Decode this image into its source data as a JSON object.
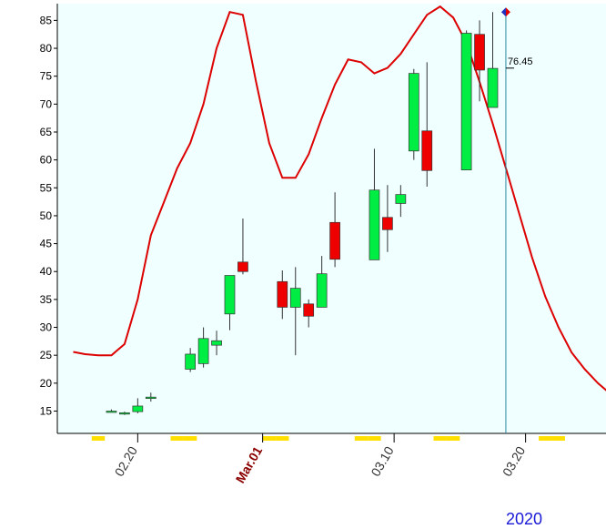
{
  "chart_data": {
    "type": "candlestick",
    "title": "",
    "xlabel": "",
    "ylabel": "",
    "ylim": [
      11,
      88
    ],
    "y_ticks": [
      15,
      20,
      25,
      30,
      35,
      40,
      45,
      50,
      55,
      60,
      65,
      70,
      75,
      80,
      85
    ],
    "x_tick_labels": [
      {
        "label": "02.20",
        "index": 3,
        "style": "normal"
      },
      {
        "label": "Mar.01",
        "index": 12.5,
        "style": "month"
      },
      {
        "label": "03.10",
        "index": 22.5,
        "style": "normal"
      },
      {
        "label": "03.20",
        "index": 32.5,
        "style": "normal"
      }
    ],
    "year_label": "2020",
    "current_value_label": "76.45",
    "current_index": 31,
    "current_marker_value": 86.5,
    "background_color": "#f0ffff",
    "up_color": "#00ee44",
    "down_color": "#ee0000",
    "line_color": "#dd0000",
    "candles": [
      {
        "i": 1,
        "open": 15.0,
        "high": 15.3,
        "low": 14.8,
        "close": 15.0
      },
      {
        "i": 2,
        "open": 14.6,
        "high": 14.9,
        "low": 14.3,
        "close": 14.7
      },
      {
        "i": 3,
        "open": 14.9,
        "high": 17.3,
        "low": 14.6,
        "close": 15.9
      },
      {
        "i": 4,
        "open": 17.3,
        "high": 18.3,
        "low": 16.7,
        "close": 17.5
      },
      {
        "i": 7,
        "open": 22.5,
        "high": 26.3,
        "low": 22.0,
        "close": 25.2
      },
      {
        "i": 8,
        "open": 23.5,
        "high": 30.0,
        "low": 22.8,
        "close": 28.0
      },
      {
        "i": 9,
        "open": 26.8,
        "high": 29.4,
        "low": 25.0,
        "close": 27.6
      },
      {
        "i": 10,
        "open": 32.4,
        "high": 39.3,
        "low": 29.5,
        "close": 39.3
      },
      {
        "i": 11,
        "open": 41.7,
        "high": 49.5,
        "low": 39.5,
        "close": 40.0
      },
      {
        "i": 14,
        "open": 38.2,
        "high": 40.2,
        "low": 31.5,
        "close": 33.6
      },
      {
        "i": 15,
        "open": 33.6,
        "high": 40.8,
        "low": 25.0,
        "close": 37.0
      },
      {
        "i": 16,
        "open": 34.2,
        "high": 35.0,
        "low": 30.0,
        "close": 32.0
      },
      {
        "i": 17,
        "open": 33.6,
        "high": 42.8,
        "low": 33.6,
        "close": 39.6
      },
      {
        "i": 18,
        "open": 48.8,
        "high": 54.2,
        "low": 40.8,
        "close": 42.2
      },
      {
        "i": 21,
        "open": 42.1,
        "high": 62.0,
        "low": 42.1,
        "close": 54.6
      },
      {
        "i": 22,
        "open": 49.7,
        "high": 55.5,
        "low": 43.5,
        "close": 47.5
      },
      {
        "i": 23,
        "open": 52.2,
        "high": 55.5,
        "low": 49.8,
        "close": 53.8
      },
      {
        "i": 24,
        "open": 61.6,
        "high": 76.3,
        "low": 60.0,
        "close": 75.5
      },
      {
        "i": 25,
        "open": 65.2,
        "high": 77.5,
        "low": 55.2,
        "close": 58.1
      },
      {
        "i": 28,
        "open": 58.2,
        "high": 83.2,
        "low": 58.2,
        "close": 82.7
      },
      {
        "i": 29,
        "open": 82.5,
        "high": 85.0,
        "low": 70.5,
        "close": 76.1
      },
      {
        "i": 30,
        "open": 69.4,
        "high": 86.5,
        "low": 69.4,
        "close": 76.4
      }
    ],
    "line_series": [
      [
        -1.9,
        25.6
      ],
      [
        -1,
        25.2
      ],
      [
        0,
        25.0
      ],
      [
        1,
        25.0
      ],
      [
        2,
        27.0
      ],
      [
        3,
        35.0
      ],
      [
        4,
        46.5
      ],
      [
        5,
        52.5
      ],
      [
        6,
        58.5
      ],
      [
        7,
        63.0
      ],
      [
        8,
        70.0
      ],
      [
        9,
        80.0
      ],
      [
        10,
        86.5
      ],
      [
        11,
        86.0
      ],
      [
        12,
        74.0
      ],
      [
        13,
        63.0
      ],
      [
        14,
        56.8
      ],
      [
        15,
        56.8
      ],
      [
        16,
        61.0
      ],
      [
        17,
        67.5
      ],
      [
        18,
        73.5
      ],
      [
        19,
        78.0
      ],
      [
        20,
        77.5
      ],
      [
        21,
        75.5
      ],
      [
        22,
        76.5
      ],
      [
        23,
        79.0
      ],
      [
        24,
        82.5
      ],
      [
        25,
        86.0
      ],
      [
        26,
        87.5
      ],
      [
        27,
        85.5
      ],
      [
        28,
        81.0
      ],
      [
        29,
        74.0
      ],
      [
        30,
        66.5
      ],
      [
        31,
        58.5
      ],
      [
        32,
        50.5
      ],
      [
        33,
        42.5
      ],
      [
        34,
        35.5
      ],
      [
        35,
        30.0
      ],
      [
        36,
        25.5
      ],
      [
        37,
        22.5
      ],
      [
        38,
        20.0
      ],
      [
        39,
        18.0
      ],
      [
        40,
        17.0
      ]
    ],
    "x_markers": [
      0,
      6,
      7,
      13,
      14,
      20,
      21,
      26,
      27,
      34,
      35,
      41
    ]
  }
}
